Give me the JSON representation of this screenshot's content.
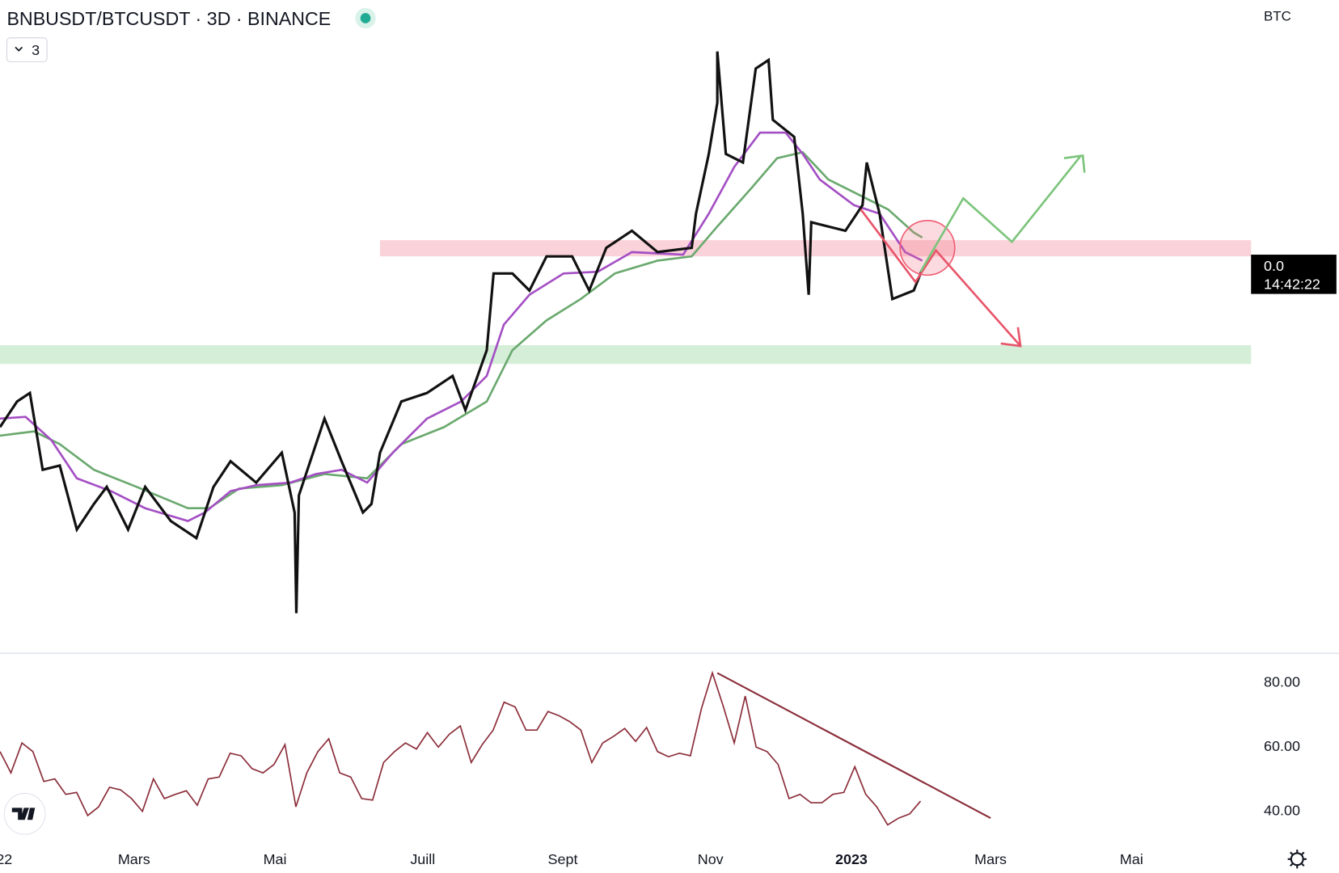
{
  "header": {
    "symbol": "BNBUSDT/BTCUSDT · 3D · BINANCE",
    "layers": "3",
    "currency": "BTC"
  },
  "price_label": {
    "price": "0.0",
    "countdown": "14:42:22"
  },
  "x_axis": {
    "labels": [
      "22",
      "Mars",
      "Mai",
      "Juill",
      "Sept",
      "Nov",
      "2023",
      "Mars",
      "Mai"
    ]
  },
  "rsi": {
    "ylim": [
      29,
      88
    ],
    "yticks": [
      {
        "value": 80,
        "label": "80.00"
      },
      {
        "value": 60,
        "label": "60.00"
      },
      {
        "value": 40,
        "label": "40.00"
      }
    ],
    "color": "#8b2e3a",
    "values": [
      58.2,
      51.6,
      60.9,
      58.2,
      48.9,
      49.7,
      44.9,
      45.5,
      38.3,
      41.0,
      47.1,
      46.3,
      43.6,
      39.6,
      49.7,
      43.6,
      44.9,
      46.0,
      41.5,
      49.7,
      50.3,
      57.7,
      56.9,
      52.9,
      51.6,
      54.2,
      60.4,
      41.0,
      51.6,
      58.2,
      62.2,
      51.6,
      50.3,
      43.6,
      43.1,
      54.8,
      58.2,
      60.9,
      59.0,
      64.1,
      59.6,
      63.6,
      66.2,
      54.8,
      60.4,
      64.9,
      73.6,
      72.1,
      64.9,
      64.9,
      70.7,
      69.4,
      67.5,
      64.9,
      54.8,
      60.9,
      63.0,
      65.4,
      61.4,
      65.7,
      58.2,
      56.6,
      57.7,
      56.9,
      71.5,
      82.7,
      72.3,
      60.9,
      75.5,
      59.6,
      58.2,
      54.2,
      43.6,
      44.9,
      42.3,
      42.3,
      44.9,
      45.5,
      53.5,
      44.9,
      41.0,
      35.4,
      37.5,
      38.8,
      42.8
    ]
  }
}
